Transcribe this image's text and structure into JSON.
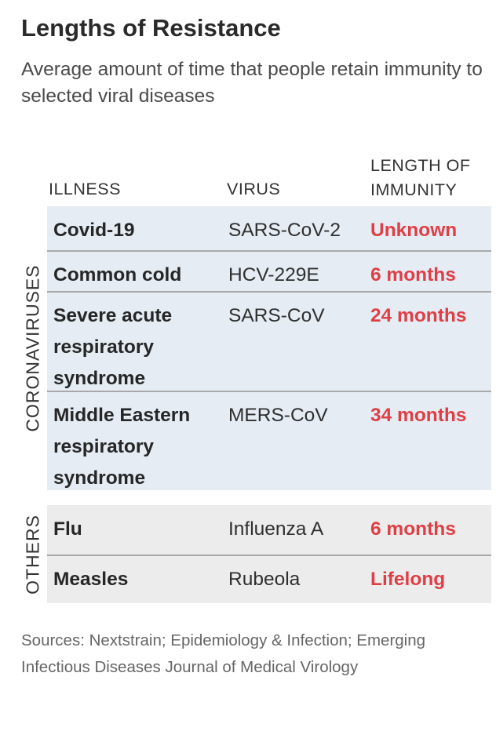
{
  "title": "Lengths of Resistance",
  "subtitle": "Average amount of time that people retain immunity to selected viral diseases",
  "columns": {
    "illness": "ILLNESS",
    "virus": "VIRUS",
    "length": "LENGTH OF IMMUNITY"
  },
  "colors": {
    "accent": "#e03e45",
    "coronavirus_bg": "#e5ecf4",
    "others_bg": "#ececec"
  },
  "chart_data": {
    "type": "table",
    "title": "Lengths of Resistance",
    "subtitle": "Average amount of time that people retain immunity to selected viral diseases",
    "columns": [
      "ILLNESS",
      "VIRUS",
      "LENGTH OF IMMUNITY"
    ],
    "groups": [
      {
        "name": "CORONAVIRUSES",
        "rows": [
          {
            "illness": "Covid-19",
            "virus": "SARS-CoV-2",
            "length": "Unknown"
          },
          {
            "illness": "Common cold",
            "virus": "HCV-229E",
            "length": "6 months"
          },
          {
            "illness": "Severe acute respiratory syndrome",
            "virus": "SARS-CoV",
            "length": "24 months"
          },
          {
            "illness": "Middle Eastern respiratory syndrome",
            "virus": "MERS-CoV",
            "length": "34 months"
          }
        ]
      },
      {
        "name": "OTHERS",
        "rows": [
          {
            "illness": "Flu",
            "virus": "Influenza A",
            "length": "6 months"
          },
          {
            "illness": "Measles",
            "virus": "Rubeola",
            "length": "Lifelong"
          }
        ]
      }
    ]
  },
  "source": "Sources: Nextstrain; Epidemiology & Infection; Emerging Infectious Diseases Journal of Medical Virology"
}
